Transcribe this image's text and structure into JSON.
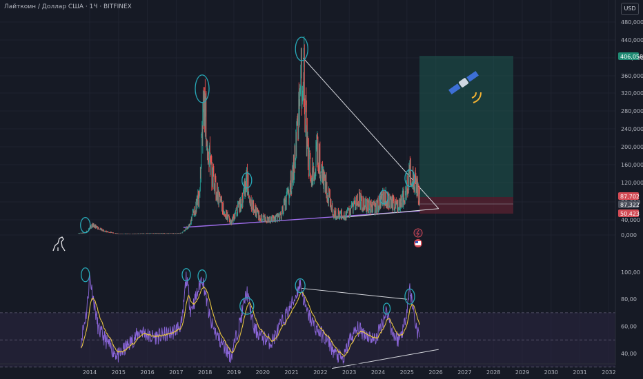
{
  "title": "Лайткоин / Доллар США · 1Ч · BITFINEX",
  "currency_button": "USD",
  "colors": {
    "background": "#161a25",
    "candle_up": "#26a69a",
    "candle_down": "#ef5350",
    "trendline_purple": "#9c6ce8",
    "trendline_white": "#d7d9df",
    "circle_annotation": "#27a9b8",
    "target_zone": "#1e5850",
    "stop_zone": "#5a2230",
    "rsi_line": "#8b66d9",
    "rsi_ma": "#e7c442",
    "rsi_band": "#2a2440"
  },
  "price_tags": [
    {
      "value": "406,058",
      "color": "#1f8b74"
    },
    {
      "value": "87,702",
      "color": "#d34b55"
    },
    {
      "value": "87,322",
      "color": "#4a4e5a"
    },
    {
      "value": "50,423",
      "color": "#d34b55"
    }
  ],
  "icons": [
    "satellite-icon",
    "dino-logo-icon",
    "lightning-event-icon",
    "flag-event-icon"
  ],
  "chart_data": [
    {
      "type": "line",
      "name": "price",
      "yticks": [
        "480,000",
        "440,000",
        "400,000",
        "360,000",
        "320,000",
        "280,000",
        "240,000",
        "200,000",
        "160,000",
        "120,000",
        "80,000",
        "40,000",
        "0,000"
      ],
      "x": [
        2013.6,
        2013.85,
        2014.1,
        2014.5,
        2015.0,
        2015.5,
        2016.0,
        2016.5,
        2017.0,
        2017.2,
        2017.45,
        2017.6,
        2017.8,
        2017.95,
        2018.2,
        2018.5,
        2018.9,
        2019.3,
        2019.45,
        2019.6,
        2019.9,
        2020.2,
        2020.6,
        2020.9,
        2021.05,
        2021.3,
        2021.4,
        2021.55,
        2021.75,
        2021.9,
        2022.0,
        2022.2,
        2022.45,
        2022.6,
        2022.9,
        2023.1,
        2023.3,
        2023.6,
        2023.9,
        2024.2,
        2024.4,
        2024.7,
        2024.95,
        2025.1,
        2025.3,
        2025.45
      ],
      "values": [
        4,
        6,
        26,
        10,
        3,
        3,
        4,
        4,
        4,
        5,
        25,
        55,
        90,
        300,
        150,
        80,
        32,
        85,
        130,
        75,
        45,
        40,
        45,
        95,
        140,
        300,
        400,
        180,
        130,
        200,
        150,
        110,
        55,
        52,
        50,
        65,
        85,
        72,
        65,
        90,
        80,
        70,
        95,
        140,
        120,
        87.3
      ],
      "xlim": [
        2013.0,
        2032.5
      ],
      "ylim": [
        0,
        500
      ],
      "scale": "nonlinear"
    },
    {
      "type": "line",
      "name": "rsi",
      "yticks": [
        "100,00",
        "80,00",
        "60,00",
        "40,00"
      ],
      "x": [
        2013.7,
        2013.9,
        2014.0,
        2014.3,
        2014.7,
        2015.0,
        2015.4,
        2015.8,
        2016.1,
        2016.5,
        2016.9,
        2017.2,
        2017.35,
        2017.5,
        2017.7,
        2017.9,
        2018.2,
        2018.5,
        2018.9,
        2019.2,
        2019.45,
        2019.7,
        2020.0,
        2020.3,
        2020.6,
        2020.9,
        2021.1,
        2021.3,
        2021.5,
        2021.8,
        2022.0,
        2022.3,
        2022.5,
        2022.8,
        2023.0,
        2023.3,
        2023.6,
        2023.9,
        2024.1,
        2024.3,
        2024.5,
        2024.7,
        2024.9,
        2025.1,
        2025.3,
        2025.45
      ],
      "values": [
        50,
        72,
        97,
        58,
        45,
        38,
        48,
        57,
        52,
        53,
        56,
        62,
        97,
        72,
        82,
        97,
        62,
        50,
        38,
        62,
        86,
        58,
        52,
        48,
        60,
        72,
        80,
        92,
        72,
        60,
        55,
        48,
        40,
        35,
        50,
        58,
        54,
        50,
        60,
        72,
        55,
        50,
        60,
        88,
        62,
        50
      ],
      "xlim": [
        2013.0,
        2032.5
      ],
      "ylim": [
        20,
        110
      ],
      "band": [
        30,
        70
      ],
      "midline": 50
    }
  ],
  "x_axis": {
    "labels": [
      "2014",
      "2015",
      "2016",
      "2017",
      "2018",
      "2019",
      "2020",
      "2021",
      "2022",
      "2023",
      "2024",
      "2025",
      "2026",
      "2027",
      "2028",
      "2029",
      "2030",
      "2031",
      "2032"
    ]
  }
}
